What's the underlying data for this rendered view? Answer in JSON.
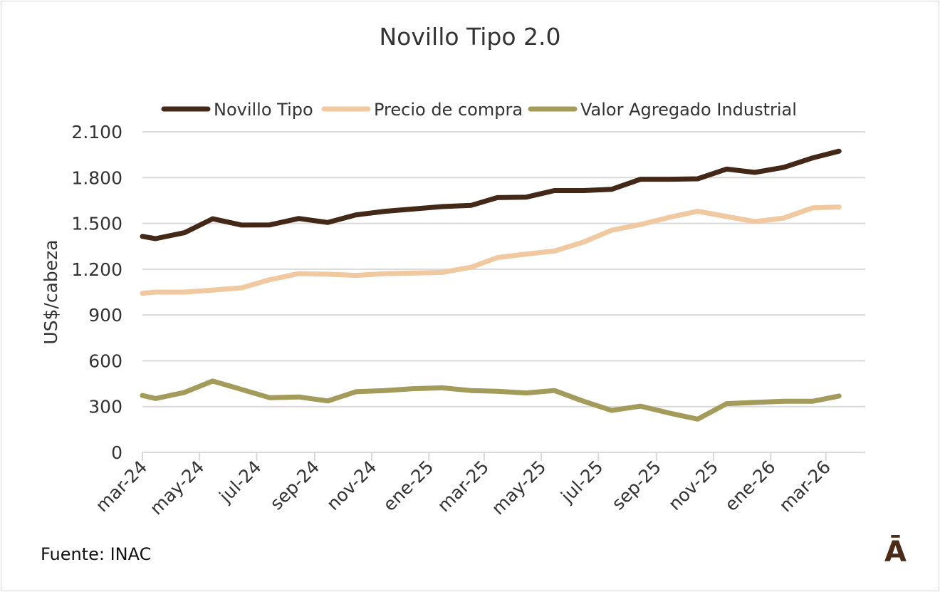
{
  "chart_data": {
    "type": "line",
    "title": "Novillo Tipo 2.0",
    "xlabel": "",
    "ylabel": "US$/cabeza",
    "ylim": [
      0,
      2100
    ],
    "yticks": [
      0,
      300,
      600,
      900,
      1200,
      1500,
      1800,
      2100
    ],
    "ytick_labels": [
      "0",
      "300",
      "600",
      "900",
      "1.200",
      "1.500",
      "1.800",
      "2.100"
    ],
    "xlim": [
      "2024-03-01",
      "2026-04-12"
    ],
    "xticks": [
      "2024-03-01",
      "2024-05-01",
      "2024-07-01",
      "2024-09-01",
      "2024-11-01",
      "2025-01-01",
      "2025-03-01",
      "2025-05-01",
      "2025-07-01",
      "2025-09-01",
      "2025-11-01",
      "2026-01-01",
      "2026-03-01"
    ],
    "xtick_labels": [
      "mar-24",
      "may-24",
      "jul-24",
      "sep-24",
      "nov-24",
      "ene-25",
      "mar-25",
      "may-25",
      "jul-25",
      "sep-25",
      "nov-25",
      "ene-26",
      "mar-26"
    ],
    "grid": "horizontal",
    "legend": "top",
    "x": [
      "2024-03-01",
      "2024-03-15",
      "2024-04-15",
      "2024-05-15",
      "2024-06-15",
      "2024-07-15",
      "2024-08-15",
      "2024-09-15",
      "2024-10-15",
      "2024-11-15",
      "2024-12-15",
      "2025-01-15",
      "2025-02-15",
      "2025-03-15",
      "2025-04-15",
      "2025-05-15",
      "2025-06-15",
      "2025-07-15",
      "2025-08-15",
      "2025-09-15",
      "2025-10-15",
      "2025-11-15",
      "2025-12-15",
      "2026-01-15",
      "2026-02-15",
      "2026-03-15"
    ],
    "series": [
      {
        "name": "Novillo Tipo",
        "color": "#432818",
        "values": [
          1415,
          1400,
          1439,
          1530,
          1489,
          1490,
          1532,
          1506,
          1556,
          1579,
          1594,
          1610,
          1618,
          1669,
          1672,
          1715,
          1715,
          1723,
          1789,
          1789,
          1792,
          1856,
          1834,
          1867,
          1929,
          1973
        ]
      },
      {
        "name": "Precio de compra",
        "color": "#f0c9a0",
        "values": [
          1042,
          1050,
          1050,
          1063,
          1078,
          1131,
          1171,
          1167,
          1159,
          1171,
          1174,
          1179,
          1213,
          1276,
          1299,
          1319,
          1377,
          1455,
          1493,
          1540,
          1579,
          1545,
          1512,
          1535,
          1602,
          1607
        ]
      },
      {
        "name": "Valor Agregado Industrial",
        "color": "#a39b5a",
        "values": [
          373,
          353,
          393,
          467,
          412,
          358,
          363,
          337,
          397,
          405,
          417,
          423,
          405,
          400,
          389,
          405,
          335,
          275,
          303,
          257,
          218,
          319,
          327,
          335,
          335,
          369
        ]
      }
    ]
  },
  "footer": {
    "source": "Fuente: INAC",
    "logo": "Ā"
  }
}
